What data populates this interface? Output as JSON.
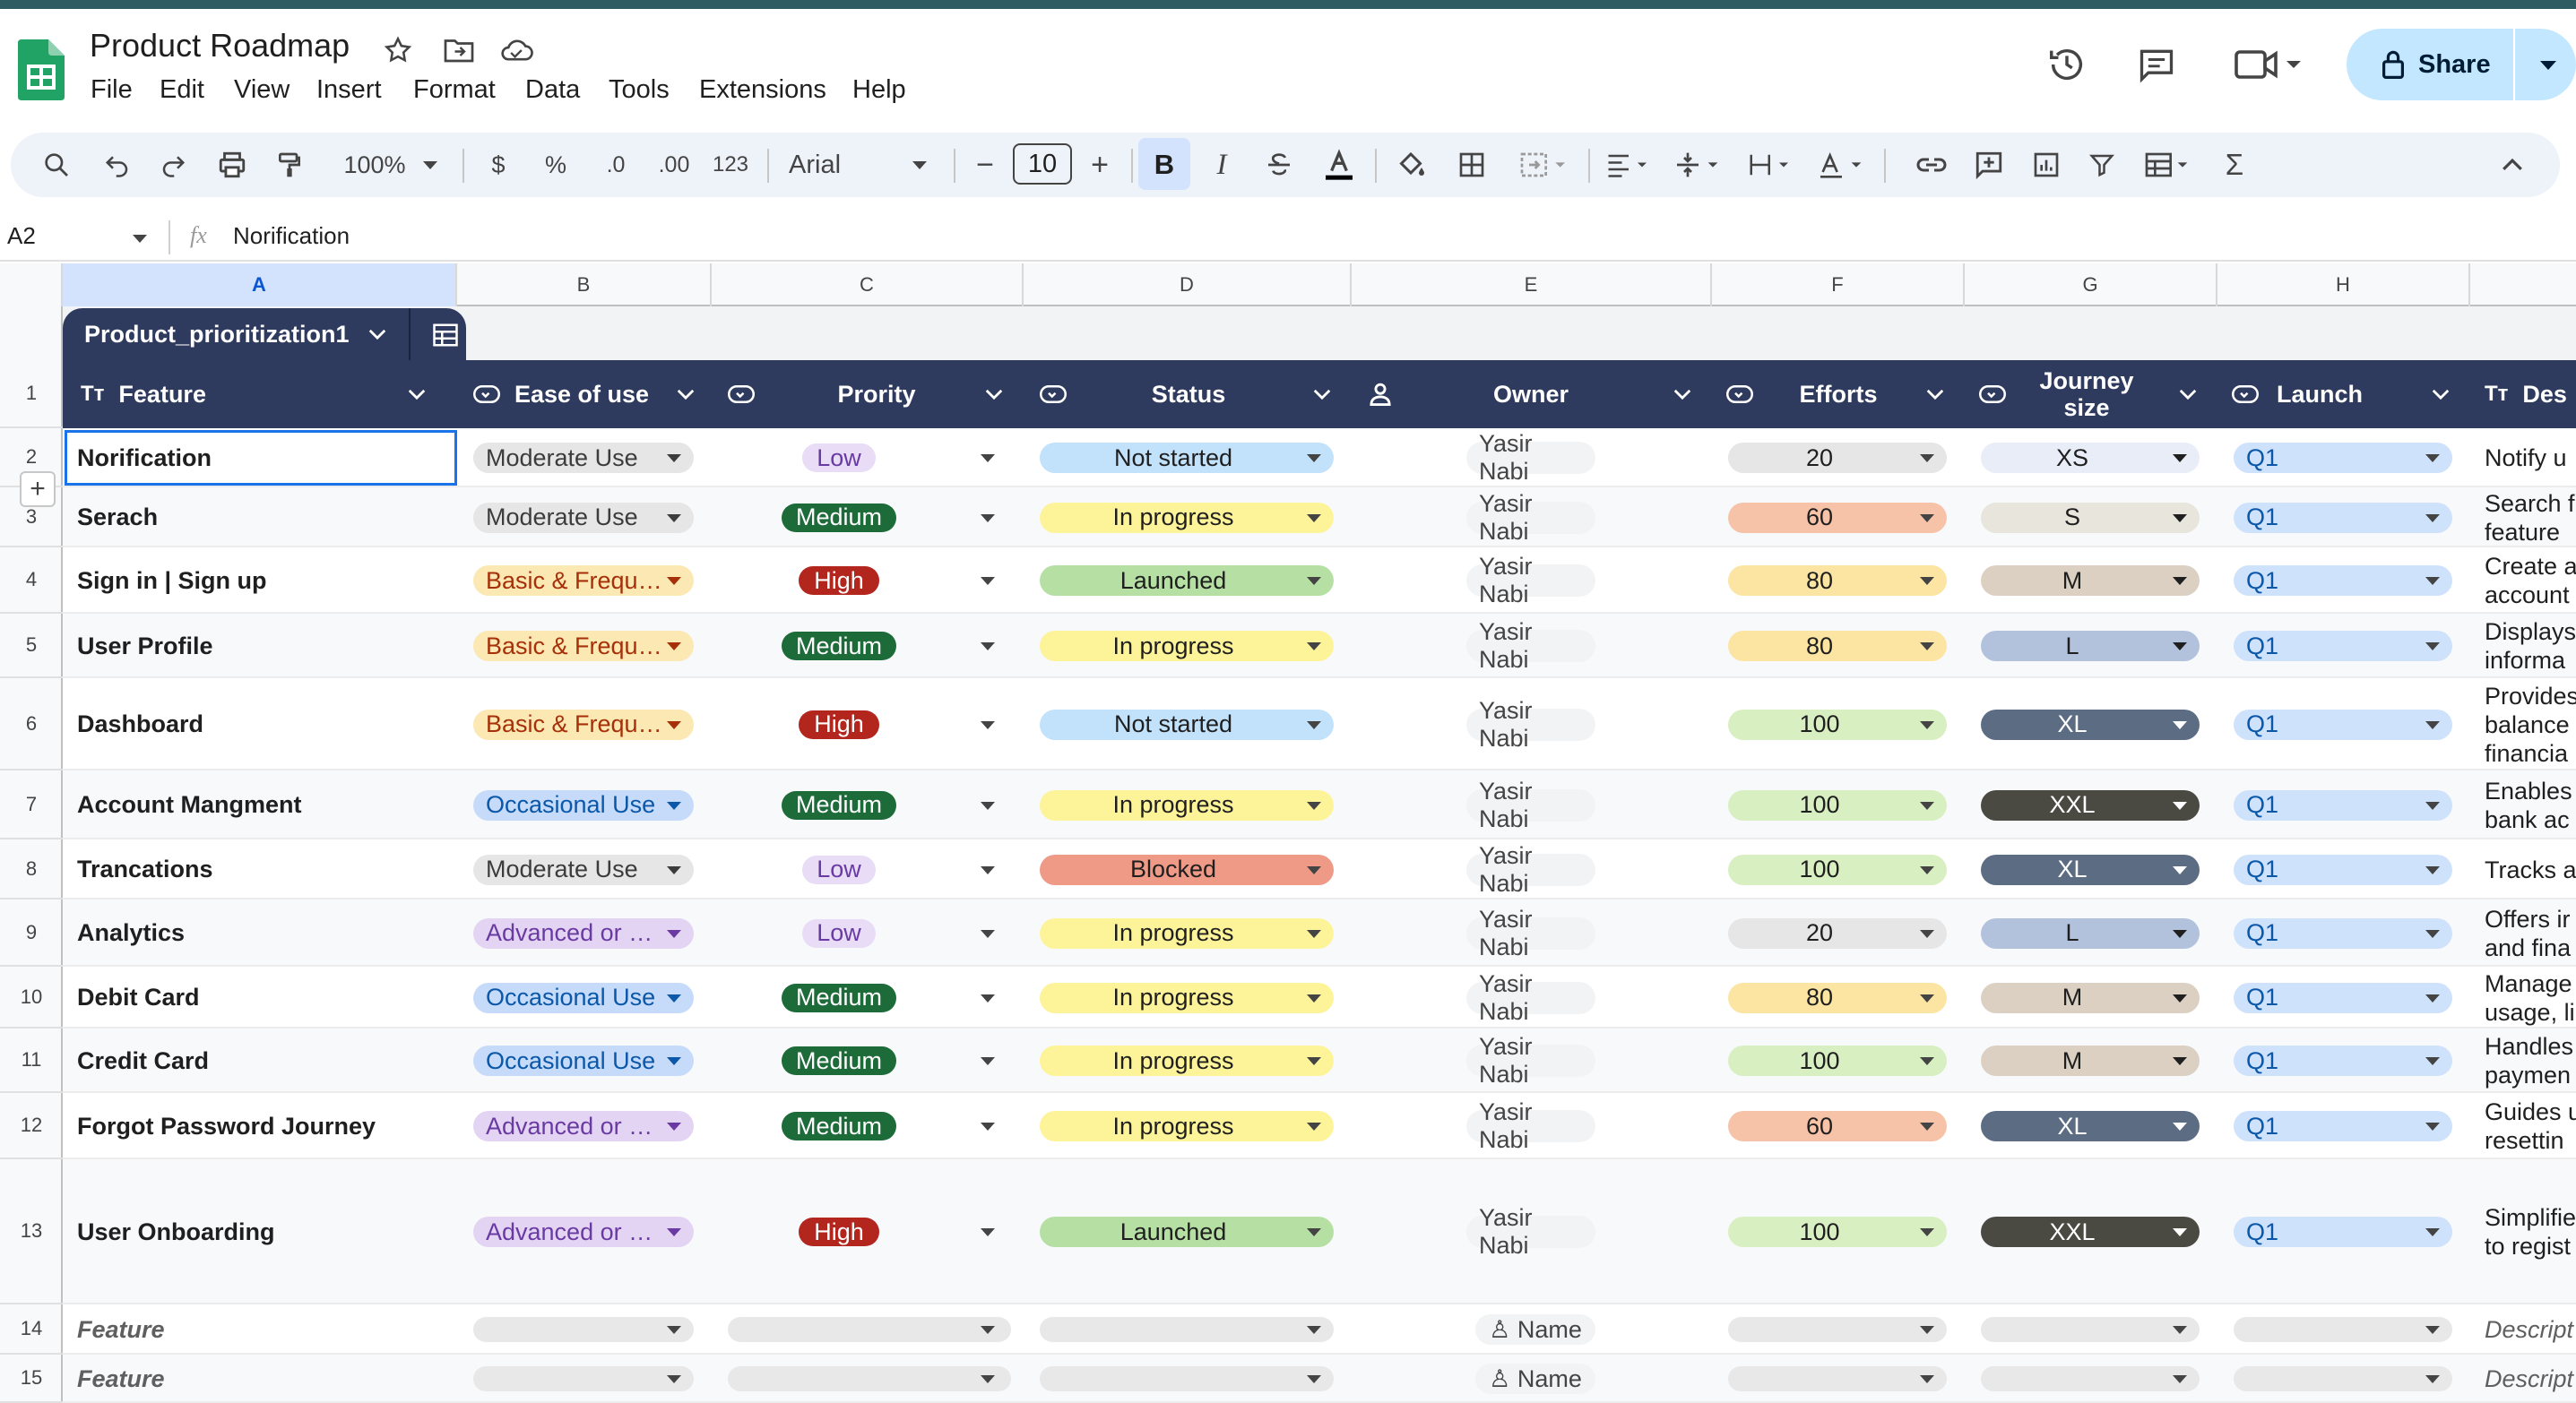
{
  "app": {
    "title": "Product Roadmap",
    "menus": [
      "File",
      "Edit",
      "View",
      "Insert",
      "Format",
      "Data",
      "Tools",
      "Extensions",
      "Help"
    ],
    "share_label": "Share"
  },
  "toolbar": {
    "zoom": "100%",
    "currency": "$",
    "percent": "%",
    "dec_decrease": ".0",
    "dec_increase": ".00",
    "number_format": "123",
    "font": "Arial",
    "font_size": "10",
    "bold": "B",
    "italic": "I"
  },
  "formula_bar": {
    "cell_ref": "A2",
    "fx": "fx",
    "content": "Norification"
  },
  "columns": [
    "A",
    "B",
    "C",
    "D",
    "E",
    "F",
    "G",
    "H"
  ],
  "table_name": "Product_prioritization1",
  "headers": {
    "feature": "Feature",
    "ease": "Ease of use",
    "priority": "Prority",
    "status": "Status",
    "owner": "Owner",
    "efforts": "Efforts",
    "journey": "Journey size",
    "launch": "Launch",
    "description": "Des"
  },
  "row_numbers": [
    "1",
    "2",
    "3",
    "4",
    "5",
    "6",
    "7",
    "8",
    "9",
    "10",
    "11",
    "12",
    "13",
    "14",
    "15"
  ],
  "rows": [
    {
      "feature": "Norification",
      "ease": "Moderate Use",
      "priority": "Low",
      "status": "Not started",
      "owner": "Yasir Nabi",
      "efforts": "20",
      "journey": "XS",
      "launch": "Q1",
      "d1": "Notify u",
      "d2": ""
    },
    {
      "feature": "Serach",
      "ease": "Moderate Use",
      "priority": "Medium",
      "status": "In progress",
      "owner": "Yasir Nabi",
      "efforts": "60",
      "journey": "S",
      "launch": "Q1",
      "d1": "Search f",
      "d2": "feature"
    },
    {
      "feature": "Sign in | Sign up",
      "ease": "Basic & Frequ…",
      "priority": "High",
      "status": "Launched",
      "owner": "Yasir Nabi",
      "efforts": "80",
      "journey": "M",
      "launch": "Q1",
      "d1": "Create a",
      "d2": "account"
    },
    {
      "feature": "User Profile",
      "ease": "Basic & Frequ…",
      "priority": "Medium",
      "status": "In progress",
      "owner": "Yasir Nabi",
      "efforts": "80",
      "journey": "L",
      "launch": "Q1",
      "d1": "Displays",
      "d2": "informa"
    },
    {
      "feature": "Dashboard",
      "ease": "Basic & Frequ…",
      "priority": "High",
      "status": "Not started",
      "owner": "Yasir Nabi",
      "efforts": "100",
      "journey": "XL",
      "launch": "Q1",
      "d1": "Provides",
      "d2": "balance",
      "d3": "financia"
    },
    {
      "feature": "Account Mangment",
      "ease": "Occasional Use",
      "priority": "Medium",
      "status": "In progress",
      "owner": "Yasir Nabi",
      "efforts": "100",
      "journey": "XXL",
      "launch": "Q1",
      "d1": "Enables",
      "d2": "bank ac"
    },
    {
      "feature": "Trancations",
      "ease": "Moderate Use",
      "priority": "Low",
      "status": "Blocked",
      "owner": "Yasir Nabi",
      "efforts": "100",
      "journey": "XL",
      "launch": "Q1",
      "d1": "Tracks a",
      "d2": ""
    },
    {
      "feature": "Analytics",
      "ease": "Advanced or …",
      "priority": "Low",
      "status": "In progress",
      "owner": "Yasir Nabi",
      "efforts": "20",
      "journey": "L",
      "launch": "Q1",
      "d1": "Offers ir",
      "d2": "and fina"
    },
    {
      "feature": "Debit Card",
      "ease": "Occasional Use",
      "priority": "Medium",
      "status": "In progress",
      "owner": "Yasir Nabi",
      "efforts": "80",
      "journey": "M",
      "launch": "Q1",
      "d1": "Manage",
      "d2": "usage, li"
    },
    {
      "feature": "Credit Card",
      "ease": "Occasional Use",
      "priority": "Medium",
      "status": "In progress",
      "owner": "Yasir Nabi",
      "efforts": "100",
      "journey": "M",
      "launch": "Q1",
      "d1": "Handles",
      "d2": "paymen"
    },
    {
      "feature": "Forgot Password Journey",
      "ease": "Advanced or …",
      "priority": "Medium",
      "status": "In progress",
      "owner": "Yasir Nabi",
      "efforts": "60",
      "journey": "XL",
      "launch": "Q1",
      "d1": "Guides u",
      "d2": "resettin"
    },
    {
      "feature": "User Onboarding",
      "ease": "Advanced or …",
      "priority": "High",
      "status": "Launched",
      "owner": "Yasir Nabi",
      "efforts": "100",
      "journey": "XXL",
      "launch": "Q1",
      "d1": "Simplifie",
      "d2": "to regist"
    }
  ],
  "empty_rows": [
    {
      "feature": "Feature",
      "owner": "Name",
      "description": "Descript"
    },
    {
      "feature": "Feature",
      "owner": "Name",
      "description": "Descript"
    }
  ],
  "colors": {
    "header_bg": "#2f3b5e",
    "ease": {
      "Moderate Use": "#e6e6e6",
      "Basic & Frequ…": "#fce8b2",
      "Occasional Use": "#c6dbfa",
      "Advanced or …": "#e4d4f3"
    },
    "ease_text": {
      "Moderate Use": "#3c3c3c",
      "Basic & Frequ…": "#a6300a",
      "Occasional Use": "#0b57a8",
      "Advanced or …": "#6a3aa3"
    },
    "priority": {
      "Low": "#e8dcf6",
      "Medium": "#1e6b3a",
      "High": "#b3261e"
    },
    "priority_text": {
      "Low": "#6a3aa3",
      "Medium": "#ffffff",
      "High": "#ffffff"
    },
    "status": {
      "Not started": "#c2e1fb",
      "In progress": "#fdf49a",
      "Launched": "#b6dfa4",
      "Blocked": "#ef9a86"
    },
    "efforts": {
      "20": "#e6e6e6",
      "60": "#f6c3a9",
      "80": "#fce5a3",
      "100": "#d8efc1"
    },
    "journey": {
      "XS": "#e9edf7",
      "S": "#e7e5dc",
      "M": "#dcd0c3",
      "L": "#b2c2dd",
      "XL": "#5c6c83",
      "XXL": "#4a4a42"
    },
    "journey_text": {
      "XS": "#1f1f1f",
      "S": "#1f1f1f",
      "M": "#1f1f1f",
      "L": "#1f1f1f",
      "XL": "#ffffff",
      "XXL": "#ffffff"
    },
    "launch": "#cfe2fb"
  }
}
